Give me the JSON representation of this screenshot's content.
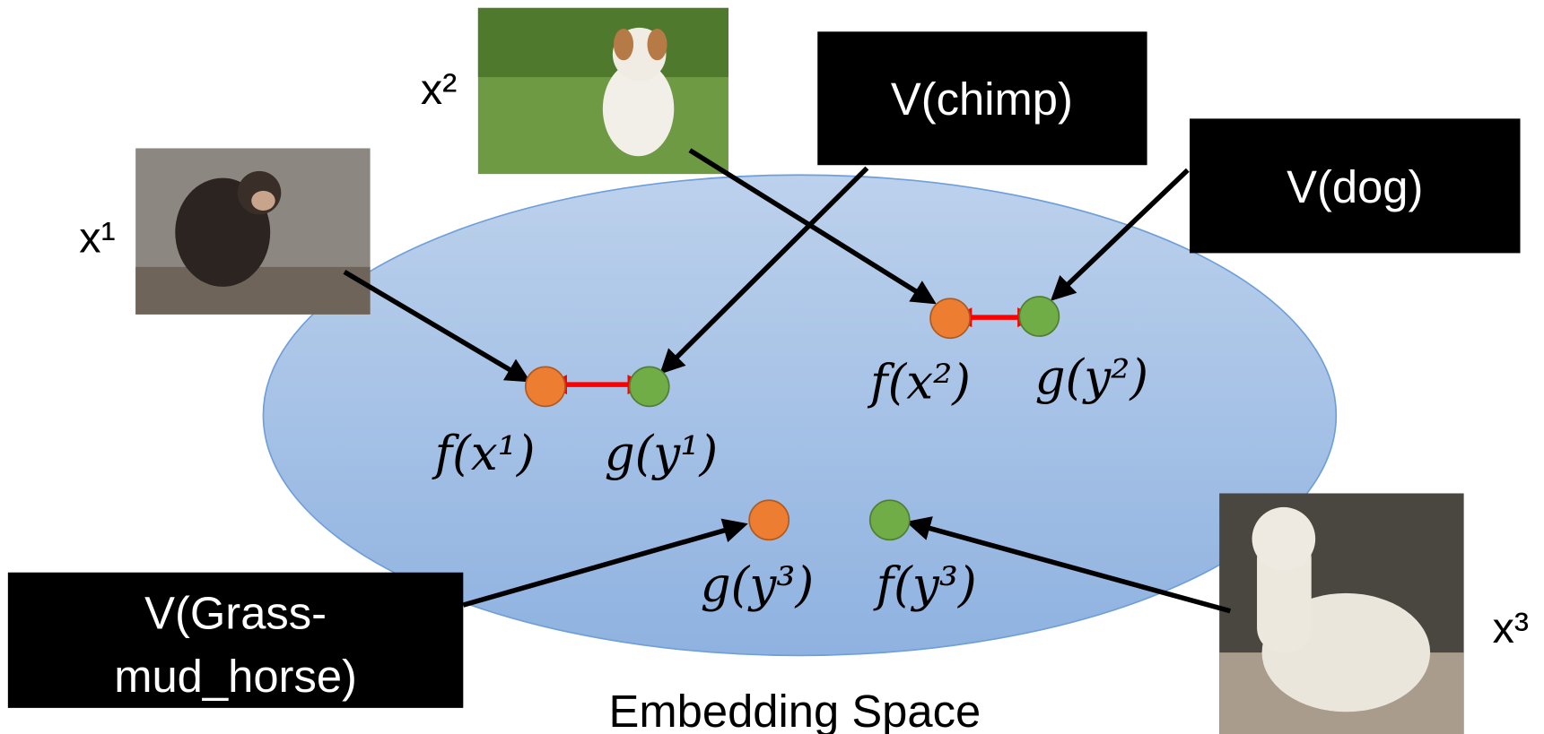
{
  "inputs": [
    {
      "label": "x¹"
    },
    {
      "label": "x²"
    },
    {
      "label": "x³"
    }
  ],
  "boxes": [
    {
      "lines": [
        "V(chimp)"
      ]
    },
    {
      "lines": [
        "V(dog)"
      ]
    },
    {
      "lines": [
        "V(Grass-",
        "mud_horse)"
      ]
    }
  ],
  "points": [
    {
      "label": "f(x¹)"
    },
    {
      "label": "g(y¹)"
    },
    {
      "label": "f(x²)"
    },
    {
      "label": "g(y²)"
    },
    {
      "label": "g(y³)"
    },
    {
      "label": "f(y³)"
    }
  ],
  "space_label": "Embedding Space"
}
